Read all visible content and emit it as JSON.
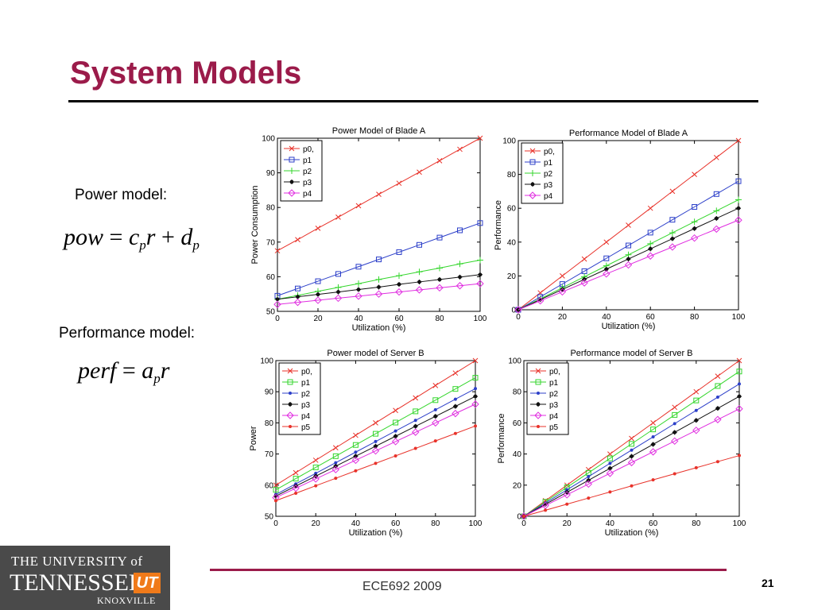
{
  "slide": {
    "title": "System Models",
    "power_label": "Power model:",
    "perf_label": "Performance model:",
    "footer": "ECE692   2009",
    "page_number": "21",
    "power_formula": {
      "lhs": "pow",
      "c": "c",
      "p1": "p",
      "r": "r",
      "d": "d",
      "p2": "p"
    },
    "perf_formula": {
      "lhs": "perf",
      "a": "a",
      "p": "p",
      "r": "r"
    },
    "logo": {
      "line1": "THE UNIVERSITY of",
      "line2": "TENNESSEE",
      "mark": "UT",
      "line3": "KNOXVILLE"
    }
  },
  "chart_data": [
    {
      "type": "line",
      "title": "Power Model of Blade A",
      "xlabel": "Utilization (%)",
      "ylabel": "Power Consumption",
      "xlim": [
        0,
        100
      ],
      "ylim": [
        50,
        100
      ],
      "xticks": [
        0,
        20,
        40,
        60,
        80,
        100
      ],
      "yticks": [
        50,
        60,
        70,
        80,
        90,
        100
      ],
      "x": [
        0,
        10,
        20,
        30,
        40,
        50,
        60,
        70,
        80,
        90,
        100
      ],
      "legend": "top-left",
      "series": [
        {
          "name": "p0,",
          "color": "#e8322a",
          "marker": "x",
          "values": [
            67.5,
            70.7,
            74.0,
            77.2,
            80.5,
            83.8,
            87.0,
            90.2,
            93.5,
            96.8,
            100
          ]
        },
        {
          "name": "p1",
          "color": "#2c3fc9",
          "marker": "square",
          "values": [
            54.5,
            56.6,
            58.7,
            60.8,
            62.9,
            65.0,
            67.1,
            69.2,
            71.3,
            73.4,
            75.5
          ]
        },
        {
          "name": "p2",
          "color": "#34d62c",
          "marker": "plus",
          "values": [
            53.5,
            54.6,
            55.8,
            56.9,
            58.0,
            59.2,
            60.3,
            61.4,
            62.5,
            63.7,
            64.8
          ]
        },
        {
          "name": "p3",
          "color": "#111111",
          "marker": "star",
          "values": [
            53.5,
            54.2,
            54.9,
            55.6,
            56.3,
            57.0,
            57.8,
            58.5,
            59.2,
            59.9,
            60.6
          ]
        },
        {
          "name": "p4",
          "color": "#e02de0",
          "marker": "diamond",
          "values": [
            52.0,
            52.6,
            53.2,
            53.8,
            54.4,
            55.0,
            55.6,
            56.2,
            56.8,
            57.4,
            58.0
          ]
        }
      ]
    },
    {
      "type": "line",
      "title": "Performance Model of Blade A",
      "xlabel": "Utilization (%)",
      "ylabel": "Performance",
      "xlim": [
        0,
        100
      ],
      "ylim": [
        0,
        100
      ],
      "xticks": [
        0,
        20,
        40,
        60,
        80,
        100
      ],
      "yticks": [
        0,
        20,
        40,
        60,
        80,
        100
      ],
      "x": [
        0,
        10,
        20,
        30,
        40,
        50,
        60,
        70,
        80,
        90,
        100
      ],
      "legend": "top-left",
      "series": [
        {
          "name": "p0,",
          "color": "#e8322a",
          "marker": "x",
          "values": [
            0,
            10,
            20,
            30,
            40,
            50,
            60,
            70,
            80,
            90,
            100
          ]
        },
        {
          "name": "p1",
          "color": "#2c3fc9",
          "marker": "square",
          "values": [
            0,
            7.6,
            15.2,
            22.8,
            30.4,
            38.0,
            45.6,
            53.2,
            60.8,
            68.4,
            76.0
          ]
        },
        {
          "name": "p2",
          "color": "#34d62c",
          "marker": "plus",
          "values": [
            0,
            6.5,
            13.0,
            19.5,
            26.0,
            32.5,
            39.0,
            45.5,
            52.0,
            58.5,
            65.0
          ]
        },
        {
          "name": "p3",
          "color": "#111111",
          "marker": "star",
          "values": [
            0,
            6.0,
            12.0,
            18.0,
            24.0,
            30.0,
            36.0,
            42.0,
            48.0,
            54.0,
            60.0
          ]
        },
        {
          "name": "p4",
          "color": "#e02de0",
          "marker": "diamond",
          "values": [
            0,
            5.3,
            10.6,
            15.9,
            21.2,
            26.5,
            31.8,
            37.1,
            42.4,
            47.7,
            53.0
          ]
        }
      ]
    },
    {
      "type": "line",
      "title": "Power model of Server B",
      "xlabel": "Utilization (%)",
      "ylabel": "Power",
      "xlim": [
        0,
        100
      ],
      "ylim": [
        50,
        100
      ],
      "xticks": [
        0,
        20,
        40,
        60,
        80,
        100
      ],
      "yticks": [
        50,
        60,
        70,
        80,
        90,
        100
      ],
      "x": [
        0,
        10,
        20,
        30,
        40,
        50,
        60,
        70,
        80,
        90,
        100
      ],
      "legend": "top-left",
      "series": [
        {
          "name": "p0,",
          "color": "#e8322a",
          "marker": "x",
          "values": [
            60.0,
            64.0,
            68.0,
            72.0,
            76.0,
            80.0,
            84.0,
            88.0,
            92.0,
            96.0,
            100
          ]
        },
        {
          "name": "p1",
          "color": "#34d62c",
          "marker": "square",
          "values": [
            58.5,
            62.1,
            65.7,
            69.3,
            72.9,
            76.5,
            80.1,
            83.7,
            87.3,
            90.9,
            94.5
          ]
        },
        {
          "name": "p2",
          "color": "#2c3fc9",
          "marker": "dot",
          "values": [
            57.0,
            60.4,
            63.8,
            67.2,
            70.6,
            74.0,
            77.4,
            80.8,
            84.2,
            87.6,
            91.0
          ]
        },
        {
          "name": "p3",
          "color": "#111111",
          "marker": "star",
          "values": [
            56.5,
            59.7,
            62.9,
            66.1,
            69.3,
            72.5,
            75.7,
            78.9,
            82.1,
            85.3,
            88.5
          ]
        },
        {
          "name": "p4",
          "color": "#e02de0",
          "marker": "diamond",
          "values": [
            56.0,
            59.0,
            62.0,
            65.0,
            68.0,
            71.0,
            74.0,
            77.0,
            80.0,
            83.0,
            86.0
          ]
        },
        {
          "name": "p5",
          "color": "#e8322a",
          "marker": "dot",
          "values": [
            55.0,
            57.4,
            59.8,
            62.2,
            64.6,
            67.0,
            69.4,
            71.8,
            74.2,
            76.6,
            79.0
          ]
        }
      ]
    },
    {
      "type": "line",
      "title": "Performance model of Server B",
      "xlabel": "Utilization (%)",
      "ylabel": "Performance",
      "xlim": [
        0,
        100
      ],
      "ylim": [
        0,
        100
      ],
      "xticks": [
        0,
        20,
        40,
        60,
        80,
        100
      ],
      "yticks": [
        0,
        20,
        40,
        60,
        80,
        100
      ],
      "x": [
        0,
        10,
        20,
        30,
        40,
        50,
        60,
        70,
        80,
        90,
        100
      ],
      "legend": "top-left",
      "series": [
        {
          "name": "p0,",
          "color": "#e8322a",
          "marker": "x",
          "values": [
            0,
            10,
            20,
            30,
            40,
            50,
            60,
            70,
            80,
            90,
            100
          ]
        },
        {
          "name": "p1",
          "color": "#34d62c",
          "marker": "square",
          "values": [
            0,
            9.3,
            18.6,
            27.9,
            37.2,
            46.5,
            55.8,
            65.1,
            74.4,
            83.7,
            93.0
          ]
        },
        {
          "name": "p2",
          "color": "#2c3fc9",
          "marker": "dot",
          "values": [
            0,
            8.5,
            17.0,
            25.5,
            34.0,
            42.5,
            51.0,
            59.5,
            68.0,
            76.5,
            85.0
          ]
        },
        {
          "name": "p3",
          "color": "#111111",
          "marker": "star",
          "values": [
            0,
            7.7,
            15.4,
            23.1,
            30.8,
            38.5,
            46.2,
            53.9,
            61.6,
            69.3,
            77.0
          ]
        },
        {
          "name": "p4",
          "color": "#e02de0",
          "marker": "diamond",
          "values": [
            0,
            6.9,
            13.8,
            20.7,
            27.6,
            34.5,
            41.4,
            48.3,
            55.2,
            62.1,
            69.0
          ]
        },
        {
          "name": "p5",
          "color": "#e8322a",
          "marker": "dot",
          "values": [
            0,
            3.9,
            7.8,
            11.7,
            15.6,
            19.5,
            23.4,
            27.3,
            31.2,
            35.1,
            39.0
          ]
        }
      ]
    }
  ]
}
